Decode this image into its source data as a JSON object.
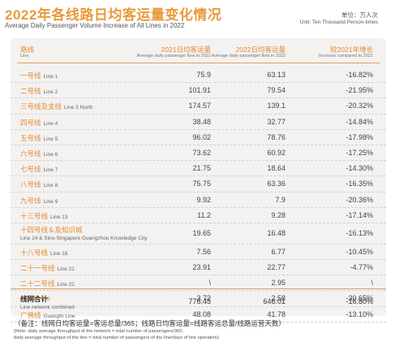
{
  "title": {
    "cn": "2022年各线路日均客运量变化情况",
    "en": "Average Daily Passenger Volume Increase of All Lines in 2022"
  },
  "unit": {
    "cn": "单位：万人次",
    "en": "Unit: Ten Thousand Person-times"
  },
  "headers": {
    "line": {
      "cn": "路线",
      "en": "Line"
    },
    "y2021": {
      "cn": "2021日均客运量",
      "en": "Average daily passenger flow in 2021"
    },
    "y2022": {
      "cn": "2022日均客运量",
      "en": "Average daily passenger flow in 2022"
    },
    "growth": {
      "cn": "较2021年增长",
      "en": "Increase compared to 2021"
    }
  },
  "rows": [
    {
      "cn": "一号线",
      "en": "Line 1",
      "y2021": "75.9",
      "y2022": "63.13",
      "growth": "-16.82%"
    },
    {
      "cn": "二号线",
      "en": "Line 2",
      "y2021": "101.91",
      "y2022": "79.54",
      "growth": "-21.95%"
    },
    {
      "cn": "三号线及支线",
      "en": "Line 3 North",
      "y2021": "174.57",
      "y2022": "139.1",
      "growth": "-20.32%"
    },
    {
      "cn": "四号线",
      "en": "Line 4",
      "y2021": "38.48",
      "y2022": "32.77",
      "growth": "-14.84%"
    },
    {
      "cn": "五号线",
      "en": "Line 5",
      "y2021": "96.02",
      "y2022": "78.76",
      "growth": "-17.98%"
    },
    {
      "cn": "六号线",
      "en": "Line 6",
      "y2021": "73.62",
      "y2022": "60.92",
      "growth": "-17.25%"
    },
    {
      "cn": "七号线",
      "en": "Line 7",
      "y2021": "21.75",
      "y2022": "18.64",
      "growth": "-14.30%"
    },
    {
      "cn": "八号线",
      "en": "Line 8",
      "y2021": "75.75",
      "y2022": "63.36",
      "growth": "-16.35%"
    },
    {
      "cn": "九号线",
      "en": "Line 9",
      "y2021": "9.92",
      "y2022": "7.9",
      "growth": "-20.36%"
    },
    {
      "cn": "十三号线",
      "en": "Line 13",
      "y2021": "11.2",
      "y2022": "9.28",
      "growth": "-17.14%"
    },
    {
      "cn": "十四号线＆及知识城",
      "en": "Line 14 & Sino-Singapore Guangzhou Knowledge City",
      "y2021": "19.65",
      "y2022": "16.48",
      "growth": "-16.13%",
      "tall": true
    },
    {
      "cn": "十八号线",
      "en": "Line 18",
      "y2021": "7.56",
      "y2022": "6.77",
      "growth": "-10.45%"
    },
    {
      "cn": "二十一号线",
      "en": "Line 21",
      "y2021": "23.91",
      "y2022": "22.77",
      "growth": "-4.77%"
    },
    {
      "cn": "二十二号线",
      "en": "Line 22",
      "y2021": "\\",
      "y2022": "2.95",
      "growth": "\\"
    },
    {
      "cn": "APM Line",
      "en": "",
      "y2021": "3.72",
      "y2022": "2.58",
      "growth": "-30.65%"
    },
    {
      "cn": "广佛线",
      "en": "Guangfo Line",
      "y2021": "48.08",
      "y2022": "41.78",
      "growth": "-13.10%"
    }
  ],
  "total": {
    "cn": "线网合计",
    "en": "Line network combined",
    "y2021": "776.45",
    "y2022": "646.01",
    "growth": "-16.80%"
  },
  "notes": {
    "cn": "（备注：线网日均客运量=客运总量/365；线路日均客运量=线路客运总量/线路运营天数）",
    "en1": "(Note: daily average throughput of the network = total number of passengers/365;",
    "en2": "daily average throughput of the line = total number of passengers of the line/days of line operation)"
  },
  "colors": {
    "accent": "#e8892c",
    "title": "#e89a3c",
    "card": "#f3f2f1"
  }
}
